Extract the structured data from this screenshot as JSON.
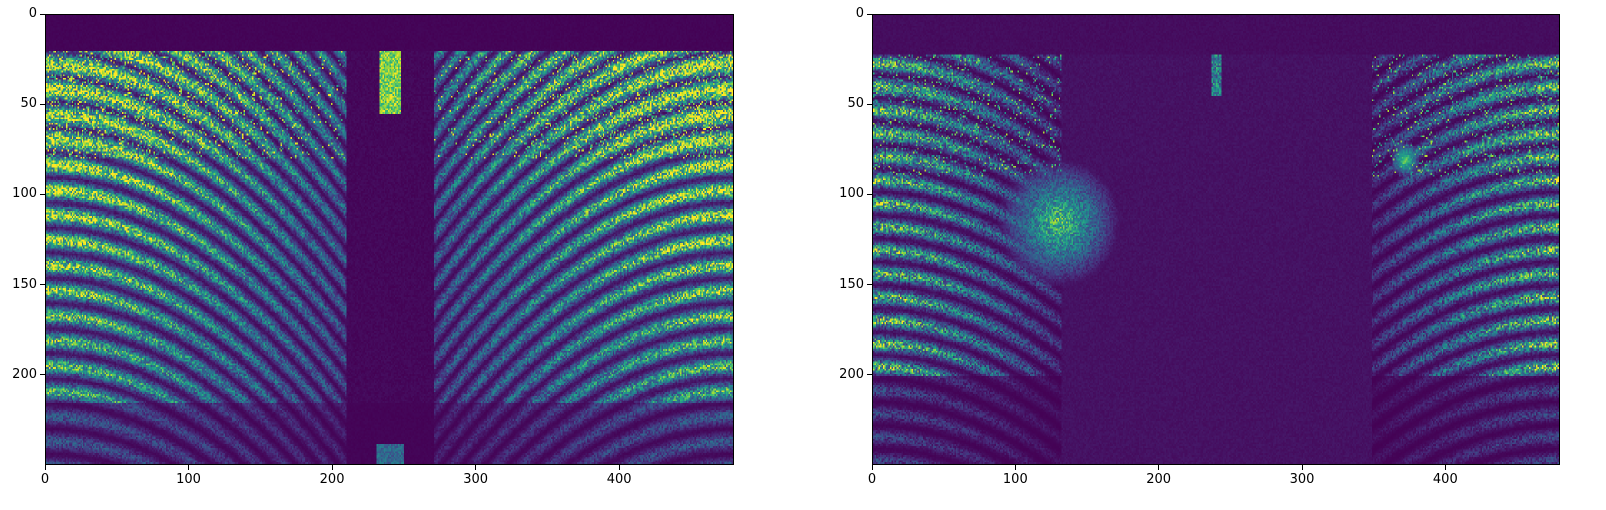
{
  "colormap": "viridis",
  "colors": {
    "low": "#440154",
    "mid": "#21918c",
    "high": "#fde725"
  },
  "chart_data": [
    {
      "type": "heatmap",
      "title": "",
      "xlabel": "",
      "ylabel": "",
      "xlim": [
        0,
        480
      ],
      "ylim": [
        250,
        0
      ],
      "xticks": [
        0,
        100,
        200,
        300,
        400
      ],
      "yticks": [
        0,
        50,
        100,
        150,
        200
      ],
      "xtick_labels": [
        "0",
        "100",
        "200",
        "300",
        "400"
      ],
      "ytick_labels": [
        "0",
        "50",
        "100",
        "150",
        "200"
      ],
      "grid": false,
      "image_shape": [
        250,
        480
      ],
      "description_pattern": "dense arcs on both sides converging toward center column; dark central gap; bright blob near x=240,y=245"
    },
    {
      "type": "heatmap",
      "title": "",
      "xlabel": "",
      "ylabel": "",
      "xlim": [
        0,
        480
      ],
      "ylim": [
        250,
        0
      ],
      "xticks": [
        0,
        100,
        200,
        300,
        400
      ],
      "yticks": [
        0,
        50,
        100,
        150,
        200
      ],
      "xtick_labels": [
        "0",
        "100",
        "200",
        "300",
        "400"
      ],
      "ytick_labels": [
        "0",
        "50",
        "100",
        "150",
        "200"
      ],
      "grid": false,
      "image_shape": [
        250,
        480
      ],
      "description_pattern": "sparser arcs on left and right edges; large dark center; noisy clusters near x=130 and x=370"
    }
  ]
}
